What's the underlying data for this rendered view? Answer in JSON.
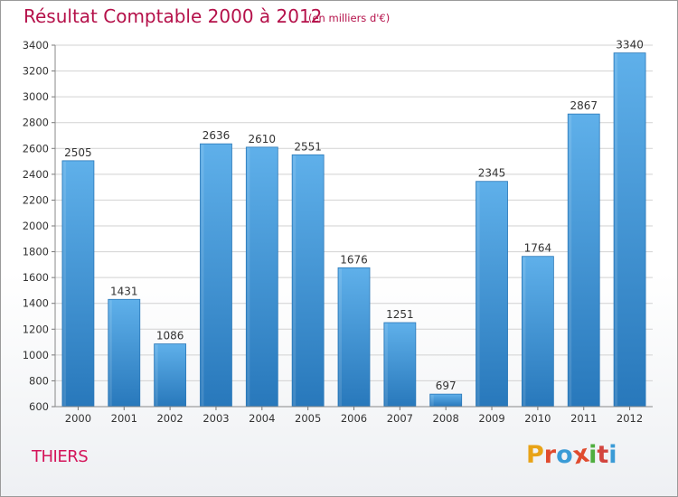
{
  "chart_data": {
    "type": "bar",
    "title": "Résultat Comptable 2000 à 2012",
    "subtitle": "(en milliers d'€)",
    "categories": [
      "2000",
      "2001",
      "2002",
      "2003",
      "2004",
      "2005",
      "2006",
      "2007",
      "2008",
      "2009",
      "2010",
      "2011",
      "2012"
    ],
    "values": [
      2505,
      1431,
      1086,
      2636,
      2610,
      2551,
      1676,
      1251,
      697,
      2345,
      1764,
      2867,
      3340
    ],
    "ylim": [
      600,
      3400
    ],
    "yticks": [
      600,
      800,
      1000,
      1200,
      1400,
      1600,
      1800,
      2000,
      2200,
      2400,
      2600,
      2800,
      3000,
      3200,
      3400
    ],
    "xlabel": "",
    "ylabel": "",
    "grid": true
  },
  "footer": {
    "city": "THIERS",
    "logo_letters": [
      "P",
      "r",
      "o",
      "x",
      "i",
      "t",
      "i"
    ],
    "logo_colors": [
      "#e8a317",
      "#e04b2e",
      "#3a9bd6",
      "#e04b2e",
      "#4fae3f",
      "#d3453e",
      "#3a9bd6"
    ]
  },
  "colors": {
    "bar_light": "#6fb8ec",
    "bar_dark": "#2a7fc1",
    "title": "#b5114a",
    "city": "#d4145a"
  }
}
